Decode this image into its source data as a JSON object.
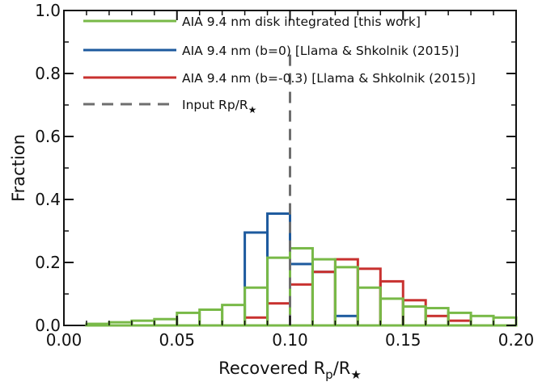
{
  "chart_data": {
    "type": "histogram",
    "xlabel_main": "Recovered R",
    "xlabel_sub1": "p",
    "xlabel_mid": "/R",
    "xlabel_sub2": "★",
    "ylabel": "Fraction",
    "xlim": [
      0.0,
      0.2
    ],
    "ylim": [
      0.0,
      1.0
    ],
    "x_ticks": [
      "0.00",
      "0.05",
      "0.10",
      "0.15",
      "0.20"
    ],
    "y_ticks": [
      "0.0",
      "0.2",
      "0.4",
      "0.6",
      "0.8",
      "1.0"
    ],
    "legend_position": "top-left",
    "bins": [
      0.0,
      0.01,
      0.02,
      0.03,
      0.04,
      0.05,
      0.06,
      0.07,
      0.08,
      0.09,
      0.1,
      0.11,
      0.12,
      0.13,
      0.14,
      0.15,
      0.16,
      0.17,
      0.18,
      0.19,
      0.2
    ],
    "series": [
      {
        "name": "AIA 9.4 nm disk integrated [this work]",
        "color": "#78b947",
        "values": [
          0.0,
          0.005,
          0.01,
          0.015,
          0.02,
          0.04,
          0.05,
          0.065,
          0.12,
          0.215,
          0.245,
          0.21,
          0.185,
          0.12,
          0.085,
          0.06,
          0.055,
          0.04,
          0.03,
          0.025
        ]
      },
      {
        "name": "AIA 9.4 nm (b=0) [Llama & Shkolnik (2015)]",
        "color": "#1d5a9e",
        "values": [
          0.0,
          0.0,
          0.0,
          0.0,
          0.0,
          0.0,
          0.0,
          0.0,
          0.295,
          0.355,
          0.195,
          0.17,
          0.03,
          0.0,
          0.0,
          0.0,
          0.0,
          0.0,
          0.0,
          0.0
        ]
      },
      {
        "name": "AIA 9.4 nm (b=-0.3) [Llama & Shkolnik (2015)]",
        "color": "#c8312f",
        "values": [
          0.0,
          0.0,
          0.0,
          0.0,
          0.0,
          0.0,
          0.0,
          0.0,
          0.025,
          0.07,
          0.13,
          0.17,
          0.21,
          0.18,
          0.14,
          0.08,
          0.03,
          0.015,
          0.0,
          0.0
        ]
      }
    ],
    "reference_line": {
      "name_main": "Input Rp/R",
      "name_sub": "★",
      "x": 0.1,
      "color": "#6e6e6e"
    }
  }
}
